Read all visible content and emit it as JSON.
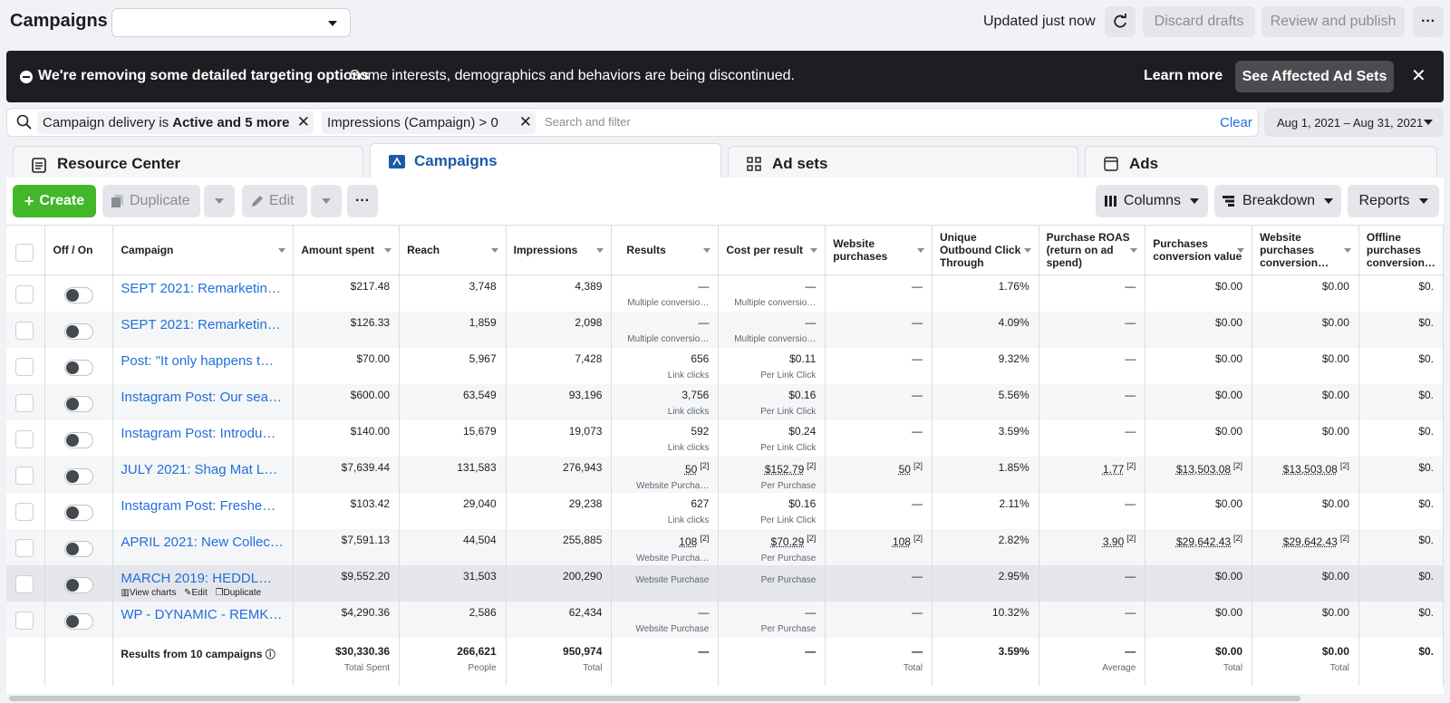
{
  "header": {
    "title": "Campaigns",
    "updated": "Updated just now",
    "discard": "Discard drafts",
    "review": "Review and publish",
    "more": "···"
  },
  "banner": {
    "headline": "We're removing some detailed targeting options",
    "text": "Some interests, demographics and behaviors are being discontinued.",
    "learn_more": "Learn more",
    "see_affected": "See Affected Ad Sets",
    "close": "✕"
  },
  "filters": {
    "chip1_prefix": "Campaign delivery is ",
    "chip1_bold": "Active and 5 more",
    "chip2": "Impressions (Campaign) > 0",
    "placeholder": "Search and filter",
    "clear": "Clear",
    "date_range": "Aug 1, 2021 – Aug 31, 2021"
  },
  "tabs": {
    "resource": "Resource Center",
    "campaigns": "Campaigns",
    "adsets": "Ad sets",
    "ads": "Ads"
  },
  "toolbar": {
    "create": "Create",
    "duplicate": "Duplicate",
    "edit": "Edit",
    "more": "···",
    "columns": "Columns",
    "breakdown": "Breakdown",
    "reports": "Reports"
  },
  "columns": [
    "Off / On",
    "Campaign",
    "Amount spent",
    "Reach",
    "Impressions",
    "Results",
    "Cost per result",
    "Website purchases",
    "Unique Outbound Click Through",
    "Purchase ROAS (return on ad spend)",
    "Purchases conversion value",
    "Website purchases conversion…",
    "Offline purchases conversion…"
  ],
  "rows": [
    {
      "name": "SEPT 2021: Remarketin…",
      "spent": "$217.48",
      "reach": "3,748",
      "impr": "4,389",
      "res": "—",
      "res_sub": "Multiple conversio…",
      "cpr": "—",
      "cpr_sub": "Multiple conversio…",
      "wp": "—",
      "ctr": "1.76%",
      "roas": "—",
      "pcv": "$0.00",
      "wpcv": "$0.00",
      "opcv": "$0."
    },
    {
      "name": "SEPT 2021: Remarketin…",
      "spent": "$126.33",
      "reach": "1,859",
      "impr": "2,098",
      "res": "—",
      "res_sub": "Multiple conversio…",
      "cpr": "—",
      "cpr_sub": "Multiple conversio…",
      "wp": "—",
      "ctr": "4.09%",
      "roas": "—",
      "pcv": "$0.00",
      "wpcv": "$0.00",
      "opcv": "$0."
    },
    {
      "name": "Post: \"It only happens t…",
      "spent": "$70.00",
      "reach": "5,967",
      "impr": "7,428",
      "res": "656",
      "res_sub": "Link clicks",
      "cpr": "$0.11",
      "cpr_sub": "Per Link Click",
      "wp": "—",
      "ctr": "9.32%",
      "roas": "—",
      "pcv": "$0.00",
      "wpcv": "$0.00",
      "opcv": "$0."
    },
    {
      "name": "Instagram Post: Our sea…",
      "spent": "$600.00",
      "reach": "63,549",
      "impr": "93,196",
      "res": "3,756",
      "res_sub": "Link clicks",
      "cpr": "$0.16",
      "cpr_sub": "Per Link Click",
      "wp": "—",
      "ctr": "5.56%",
      "roas": "—",
      "pcv": "$0.00",
      "wpcv": "$0.00",
      "opcv": "$0."
    },
    {
      "name": "Instagram Post: Introdu…",
      "spent": "$140.00",
      "reach": "15,679",
      "impr": "19,073",
      "res": "592",
      "res_sub": "Link clicks",
      "cpr": "$0.24",
      "cpr_sub": "Per Link Click",
      "wp": "—",
      "ctr": "3.59%",
      "roas": "—",
      "pcv": "$0.00",
      "wpcv": "$0.00",
      "opcv": "$0."
    },
    {
      "name": "JULY 2021: Shag Mat L…",
      "spent": "$7,639.44",
      "reach": "131,583",
      "impr": "276,943",
      "res": "50",
      "res_sup": "[2]",
      "res_sub": "Website Purcha…",
      "cpr": "$152.79",
      "cpr_sup": "[2]",
      "cpr_sub": "Per Purchase",
      "wp": "50",
      "wp_sup": "[2]",
      "ctr": "1.85%",
      "roas": "1.77",
      "roas_sup": "[2]",
      "pcv": "$13,503.08",
      "pcv_sup": "[2]",
      "wpcv": "$13,503.08",
      "wpcv_sup": "[2]",
      "opcv": "$0."
    },
    {
      "name": "Instagram Post: Freshe…",
      "spent": "$103.42",
      "reach": "29,040",
      "impr": "29,238",
      "res": "627",
      "res_sub": "Link clicks",
      "cpr": "$0.16",
      "cpr_sub": "Per Link Click",
      "wp": "—",
      "ctr": "2.11%",
      "roas": "—",
      "pcv": "$0.00",
      "wpcv": "$0.00",
      "opcv": "$0."
    },
    {
      "name": "APRIL 2021: New Collec…",
      "spent": "$7,591.13",
      "reach": "44,504",
      "impr": "255,885",
      "res": "108",
      "res_sup": "[2]",
      "res_sub": "Website Purcha…",
      "cpr": "$70.29",
      "cpr_sup": "[2]",
      "cpr_sub": "Per Purchase",
      "wp": "108",
      "wp_sup": "[2]",
      "ctr": "2.82%",
      "roas": "3.90",
      "roas_sup": "[2]",
      "pcv": "$29,642.43",
      "pcv_sup": "[2]",
      "wpcv": "$29,642.43",
      "wpcv_sup": "[2]",
      "opcv": "$0."
    },
    {
      "name": "MARCH 2019: HEDDL…",
      "spent": "$9,552.20",
      "reach": "31,503",
      "impr": "200,290",
      "res": "",
      "res_sub": "Website Purchase",
      "cpr": "",
      "cpr_sub": "Per Purchase",
      "wp": "—",
      "ctr": "2.95%",
      "roas": "—",
      "pcv": "$0.00",
      "wpcv": "$0.00",
      "opcv": "$0.",
      "actions": {
        "view_charts": "View charts",
        "edit": "Edit",
        "duplicate": "Duplicate"
      }
    },
    {
      "name": "WP - DYNAMIC - REMK…",
      "spent": "$4,290.36",
      "reach": "2,586",
      "impr": "62,434",
      "res": "—",
      "res_sub": "Website Purchase",
      "cpr": "—",
      "cpr_sub": "Per Purchase",
      "wp": "—",
      "ctr": "10.32%",
      "roas": "—",
      "pcv": "$0.00",
      "wpcv": "$0.00",
      "opcv": "$0."
    }
  ],
  "totals": {
    "label": "Results from 10 campaigns",
    "spent": "$30,330.36",
    "spent_sub": "Total Spent",
    "reach": "266,621",
    "reach_sub": "People",
    "impr": "950,974",
    "impr_sub": "Total",
    "res": "—",
    "cpr": "—",
    "wp": "—",
    "wp_sub": "Total",
    "ctr": "3.59%",
    "roas": "—",
    "roas_sub": "Average",
    "pcv": "$0.00",
    "pcv_sub": "Total",
    "wpcv": "$0.00",
    "wpcv_sub": "Total",
    "opcv": "$0."
  }
}
